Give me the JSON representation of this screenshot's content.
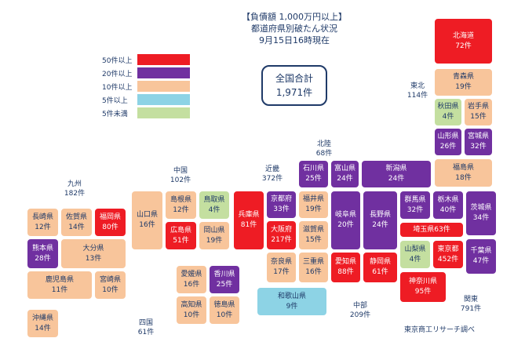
{
  "title": {
    "line1": "【負債額 1,000万円以上】",
    "line2": "都道府県別破たん状況",
    "line3": "9月15日16時現在"
  },
  "total": {
    "label": "全国合計",
    "value": "1,971件"
  },
  "legend": [
    {
      "label": "50件以上",
      "color": "#ee1c24"
    },
    {
      "label": "20件以上",
      "color": "#7030a0"
    },
    {
      "label": "10件以上",
      "color": "#f8c59b"
    },
    {
      "label": "5件以上",
      "color": "#8dd3e5"
    },
    {
      "label": "5件未満",
      "color": "#c4dfa0"
    }
  ],
  "regions": {
    "hokkaido_tohoku": {
      "name": "東北",
      "count": "114件"
    },
    "hokuriku": {
      "name": "北陸",
      "count": "68件"
    },
    "kinki": {
      "name": "近畿",
      "count": "372件"
    },
    "chugoku": {
      "name": "中国",
      "count": "102件"
    },
    "kyushu": {
      "name": "九州",
      "count": "182件"
    },
    "shikoku": {
      "name": "四国",
      "count": "61件"
    },
    "chubu": {
      "name": "中部",
      "count": "209件"
    },
    "kanto": {
      "name": "関東",
      "count": "791件"
    }
  },
  "prefectures": {
    "hokkaido": {
      "name": "北海道",
      "count": "72件"
    },
    "aomori": {
      "name": "青森県",
      "count": "19件"
    },
    "akita": {
      "name": "秋田県",
      "count": "4件"
    },
    "iwate": {
      "name": "岩手県",
      "count": "15件"
    },
    "yamagata": {
      "name": "山形県",
      "count": "26件"
    },
    "miyagi": {
      "name": "宮城県",
      "count": "32件"
    },
    "fukushima": {
      "name": "福島県",
      "count": "18件"
    },
    "niigata": {
      "name": "新潟県",
      "count": "24件"
    },
    "ishikawa": {
      "name": "石川県",
      "count": "25件"
    },
    "toyama": {
      "name": "富山県",
      "count": "24件"
    },
    "fukui": {
      "name": "福井県",
      "count": "19件"
    },
    "kyoto": {
      "name": "京都府",
      "count": "33件"
    },
    "hyogo": {
      "name": "兵庫県",
      "count": "81件"
    },
    "osaka": {
      "name": "大阪府",
      "count": "217件"
    },
    "shiga": {
      "name": "滋賀県",
      "count": "15件"
    },
    "nara": {
      "name": "奈良県",
      "count": "17件"
    },
    "mie": {
      "name": "三重県",
      "count": "16件"
    },
    "wakayama": {
      "name": "和歌山県",
      "count": "9件"
    },
    "gifu": {
      "name": "岐阜県",
      "count": "20件"
    },
    "nagano": {
      "name": "長野県",
      "count": "24件"
    },
    "aichi": {
      "name": "愛知県",
      "count": "88件"
    },
    "shizuoka": {
      "name": "静岡県",
      "count": "61件"
    },
    "yamanashi": {
      "name": "山梨県",
      "count": "4件"
    },
    "gunma": {
      "name": "群馬県",
      "count": "32件"
    },
    "tochigi": {
      "name": "栃木県",
      "count": "40件"
    },
    "ibaraki": {
      "name": "茨城県",
      "count": "34件"
    },
    "saitama": {
      "name": "埼玉県",
      "count": "63件"
    },
    "tokyo": {
      "name": "東京都",
      "count": "452件"
    },
    "chiba": {
      "name": "千葉県",
      "count": "47件"
    },
    "kanagawa": {
      "name": "神奈川県",
      "count": "95件"
    },
    "tottori": {
      "name": "鳥取県",
      "count": "4件"
    },
    "shimane": {
      "name": "島根県",
      "count": "12件"
    },
    "okayama": {
      "name": "岡山県",
      "count": "19件"
    },
    "hiroshima": {
      "name": "広島県",
      "count": "51件"
    },
    "yamaguchi": {
      "name": "山口県",
      "count": "16件"
    },
    "ehime": {
      "name": "愛媛県",
      "count": "16件"
    },
    "kagawa": {
      "name": "香川県",
      "count": "25件"
    },
    "kochi": {
      "name": "高知県",
      "count": "10件"
    },
    "tokushima": {
      "name": "徳島県",
      "count": "10件"
    },
    "nagasaki": {
      "name": "長崎県",
      "count": "12件"
    },
    "saga": {
      "name": "佐賀県",
      "count": "14件"
    },
    "fukuoka": {
      "name": "福岡県",
      "count": "80件"
    },
    "kumamoto": {
      "name": "熊本県",
      "count": "28件"
    },
    "oita": {
      "name": "大分県",
      "count": "13件"
    },
    "kagoshima": {
      "name": "鹿児島県",
      "count": "11件"
    },
    "miyazaki": {
      "name": "宮崎県",
      "count": "10件"
    },
    "okinawa": {
      "name": "沖縄県",
      "count": "14件"
    }
  },
  "source": "東京商工リサーチ調べ"
}
